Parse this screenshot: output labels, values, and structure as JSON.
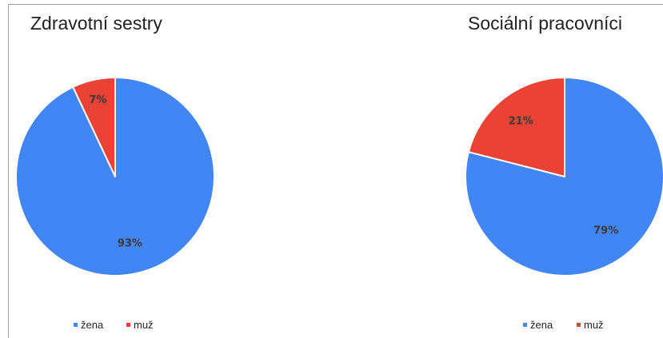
{
  "chart_data": [
    {
      "type": "pie",
      "title": "Zdravotní sestry",
      "categories": [
        "žena",
        "muž"
      ],
      "values": [
        93,
        7
      ],
      "labels": [
        "93%",
        "7%"
      ],
      "colors": [
        "#4285f4",
        "#ea4335"
      ],
      "legend": "bottom"
    },
    {
      "type": "pie",
      "title": "Sociální pracovníci",
      "categories": [
        "žena",
        "muž"
      ],
      "values": [
        79,
        21
      ],
      "labels": [
        "79%",
        "21%"
      ],
      "colors": [
        "#4285f4",
        "#ea4335"
      ],
      "legend": "bottom"
    }
  ]
}
